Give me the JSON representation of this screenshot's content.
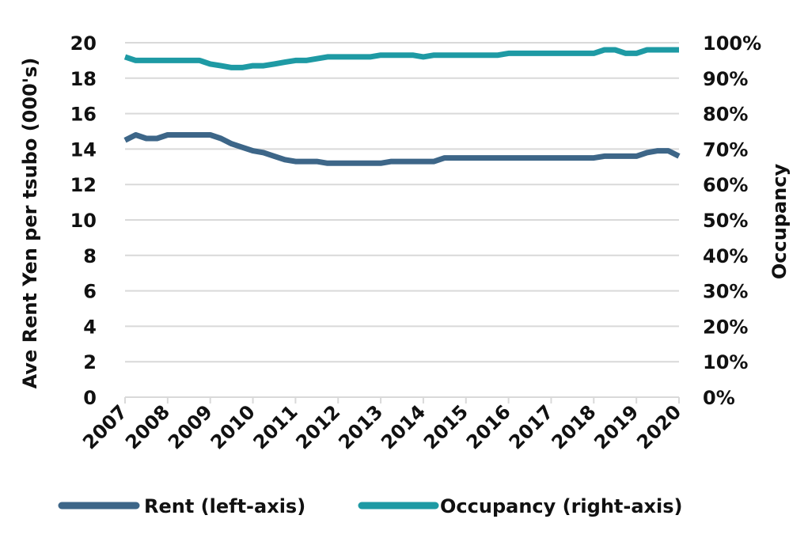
{
  "chart_data": {
    "type": "line",
    "ylabel": "Ave Rent Yen per tsubo  (000's)",
    "y2label": "Occupancy",
    "ylim": [
      0,
      20
    ],
    "y2lim": [
      0,
      1
    ],
    "yticks": [
      "0",
      "2",
      "4",
      "6",
      "8",
      "10",
      "12",
      "14",
      "16",
      "18",
      "20"
    ],
    "y2ticks": [
      "0%",
      "10%",
      "20%",
      "30%",
      "40%",
      "50%",
      "60%",
      "70%",
      "80%",
      "90%",
      "100%"
    ],
    "xticks": [
      "2007",
      "2008",
      "2009",
      "2010",
      "2011",
      "2012",
      "2013",
      "2014",
      "2015",
      "2016",
      "2017",
      "2018",
      "2019",
      "2020"
    ],
    "xlim": [
      2007,
      2020
    ],
    "grid": true,
    "legend_position": "bottom",
    "series": [
      {
        "name": "Rent (left-axis)",
        "axis": "left",
        "color": "#3d6688",
        "x": [
          2007.0,
          2007.25,
          2007.5,
          2007.75,
          2008.0,
          2008.25,
          2008.5,
          2008.75,
          2009.0,
          2009.25,
          2009.5,
          2009.75,
          2010.0,
          2010.25,
          2010.5,
          2010.75,
          2011.0,
          2011.25,
          2011.5,
          2011.75,
          2012.0,
          2012.25,
          2012.5,
          2012.75,
          2013.0,
          2013.25,
          2013.5,
          2013.75,
          2014.0,
          2014.25,
          2014.5,
          2014.75,
          2015.0,
          2015.25,
          2015.5,
          2015.75,
          2016.0,
          2016.25,
          2016.5,
          2016.75,
          2017.0,
          2017.25,
          2017.5,
          2017.75,
          2018.0,
          2018.25,
          2018.5,
          2018.75,
          2019.0,
          2019.25,
          2019.5,
          2019.75,
          2020.0
        ],
        "values": [
          14.5,
          14.8,
          14.6,
          14.6,
          14.8,
          14.8,
          14.8,
          14.8,
          14.8,
          14.6,
          14.3,
          14.1,
          13.9,
          13.8,
          13.6,
          13.4,
          13.3,
          13.3,
          13.3,
          13.2,
          13.2,
          13.2,
          13.2,
          13.2,
          13.2,
          13.3,
          13.3,
          13.3,
          13.3,
          13.3,
          13.5,
          13.5,
          13.5,
          13.5,
          13.5,
          13.5,
          13.5,
          13.5,
          13.5,
          13.5,
          13.5,
          13.5,
          13.5,
          13.5,
          13.5,
          13.6,
          13.6,
          13.6,
          13.6,
          13.8,
          13.9,
          13.9,
          13.6
        ]
      },
      {
        "name": "Occupancy (right-axis)",
        "axis": "right",
        "color": "#1e9aa4",
        "x": [
          2007.0,
          2007.25,
          2007.5,
          2007.75,
          2008.0,
          2008.25,
          2008.5,
          2008.75,
          2009.0,
          2009.25,
          2009.5,
          2009.75,
          2010.0,
          2010.25,
          2010.5,
          2010.75,
          2011.0,
          2011.25,
          2011.5,
          2011.75,
          2012.0,
          2012.25,
          2012.5,
          2012.75,
          2013.0,
          2013.25,
          2013.5,
          2013.75,
          2014.0,
          2014.25,
          2014.5,
          2014.75,
          2015.0,
          2015.25,
          2015.5,
          2015.75,
          2016.0,
          2016.25,
          2016.5,
          2016.75,
          2017.0,
          2017.25,
          2017.5,
          2017.75,
          2018.0,
          2018.25,
          2018.5,
          2018.75,
          2019.0,
          2019.25,
          2019.5,
          2019.75,
          2020.0
        ],
        "values": [
          0.96,
          0.95,
          0.95,
          0.95,
          0.95,
          0.95,
          0.95,
          0.95,
          0.94,
          0.935,
          0.93,
          0.93,
          0.935,
          0.935,
          0.94,
          0.945,
          0.95,
          0.95,
          0.955,
          0.96,
          0.96,
          0.96,
          0.96,
          0.96,
          0.965,
          0.965,
          0.965,
          0.965,
          0.96,
          0.965,
          0.965,
          0.965,
          0.965,
          0.965,
          0.965,
          0.965,
          0.97,
          0.97,
          0.97,
          0.97,
          0.97,
          0.97,
          0.97,
          0.97,
          0.97,
          0.98,
          0.98,
          0.97,
          0.97,
          0.98,
          0.98,
          0.98,
          0.98
        ]
      }
    ]
  }
}
